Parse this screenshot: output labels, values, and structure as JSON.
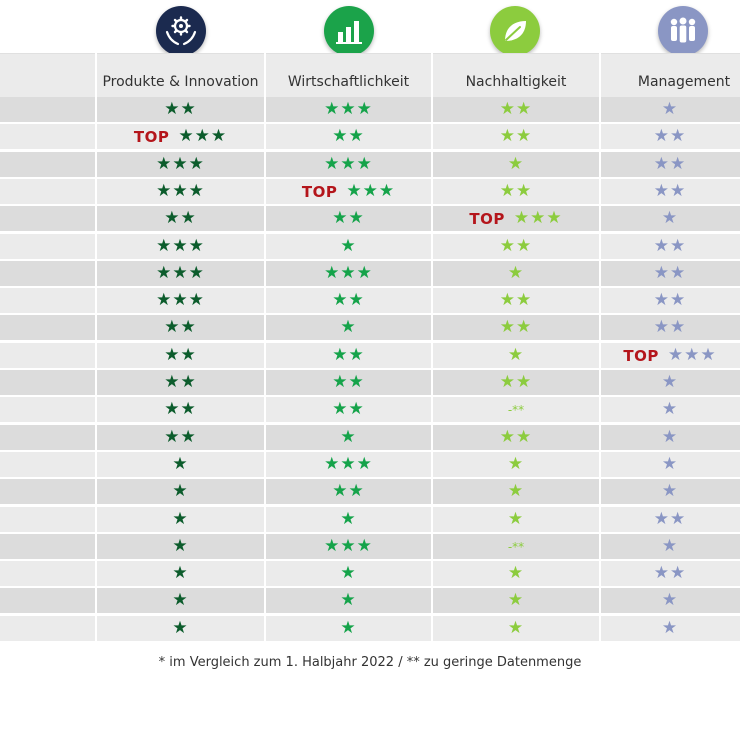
{
  "colors": {
    "produkte": "#0c5c2c",
    "wirtschaftlichkeit": "#15a34a",
    "nachhaltigkeit": "#8ccc3e",
    "management": "#8a96c4",
    "top": "#b4151b",
    "icon_produkte_bg": "#1b2a4f",
    "icon_wirtschaft_bg": "#1ba34a",
    "icon_nachhaltigkeit_bg": "#8ccc3e",
    "icon_management_bg": "#8a96c4"
  },
  "icons": [
    "hands-gear-icon",
    "bar-chart-icon",
    "leaf-icon",
    "people-icon"
  ],
  "columns": [
    "Produkte & Innovation",
    "Wirtschaftlichkeit",
    "Nachhaltigkeit",
    "Management"
  ],
  "top_label": "TOP",
  "rows": [
    [
      {
        "stars": 2,
        "top": false
      },
      {
        "stars": 3,
        "top": false
      },
      {
        "stars": 2,
        "top": false
      },
      {
        "stars": 1,
        "top": false
      }
    ],
    [
      {
        "stars": 3,
        "top": true
      },
      {
        "stars": 2,
        "top": false
      },
      {
        "stars": 2,
        "top": false
      },
      {
        "stars": 2,
        "top": false
      }
    ],
    [
      {
        "stars": 3,
        "top": false
      },
      {
        "stars": 3,
        "top": false
      },
      {
        "stars": 1,
        "top": false
      },
      {
        "stars": 2,
        "top": false
      }
    ],
    [
      {
        "stars": 3,
        "top": false
      },
      {
        "stars": 3,
        "top": true
      },
      {
        "stars": 2,
        "top": false
      },
      {
        "stars": 2,
        "top": false
      }
    ],
    [
      {
        "stars": 2,
        "top": false
      },
      {
        "stars": 2,
        "top": false
      },
      {
        "stars": 3,
        "top": true
      },
      {
        "stars": 1,
        "top": false
      }
    ],
    [
      {
        "stars": 3,
        "top": false
      },
      {
        "stars": 1,
        "top": false
      },
      {
        "stars": 2,
        "top": false
      },
      {
        "stars": 2,
        "top": false
      }
    ],
    [
      {
        "stars": 3,
        "top": false
      },
      {
        "stars": 3,
        "top": false
      },
      {
        "stars": 1,
        "top": false
      },
      {
        "stars": 2,
        "top": false
      }
    ],
    [
      {
        "stars": 3,
        "top": false
      },
      {
        "stars": 2,
        "top": false
      },
      {
        "stars": 2,
        "top": false
      },
      {
        "stars": 2,
        "top": false
      }
    ],
    [
      {
        "stars": 2,
        "top": false
      },
      {
        "stars": 1,
        "top": false
      },
      {
        "stars": 2,
        "top": false
      },
      {
        "stars": 2,
        "top": false
      }
    ],
    [
      {
        "stars": 2,
        "top": false
      },
      {
        "stars": 2,
        "top": false
      },
      {
        "stars": 1,
        "top": false
      },
      {
        "stars": 3,
        "top": true
      }
    ],
    [
      {
        "stars": 2,
        "top": false
      },
      {
        "stars": 2,
        "top": false
      },
      {
        "stars": 2,
        "top": false
      },
      {
        "stars": 1,
        "top": false
      }
    ],
    [
      {
        "stars": 2,
        "top": false
      },
      {
        "stars": 2,
        "top": false
      },
      {
        "text": "-**"
      },
      {
        "stars": 1,
        "top": false
      }
    ],
    [
      {
        "stars": 2,
        "top": false
      },
      {
        "stars": 1,
        "top": false
      },
      {
        "stars": 2,
        "top": false
      },
      {
        "stars": 1,
        "top": false
      }
    ],
    [
      {
        "stars": 1,
        "top": false
      },
      {
        "stars": 3,
        "top": false
      },
      {
        "stars": 1,
        "top": false
      },
      {
        "stars": 1,
        "top": false
      }
    ],
    [
      {
        "stars": 1,
        "top": false
      },
      {
        "stars": 2,
        "top": false
      },
      {
        "stars": 1,
        "top": false
      },
      {
        "stars": 1,
        "top": false
      }
    ],
    [
      {
        "stars": 1,
        "top": false
      },
      {
        "stars": 1,
        "top": false
      },
      {
        "stars": 1,
        "top": false
      },
      {
        "stars": 2,
        "top": false
      }
    ],
    [
      {
        "stars": 1,
        "top": false
      },
      {
        "stars": 3,
        "top": false
      },
      {
        "text": "-**"
      },
      {
        "stars": 1,
        "top": false
      }
    ],
    [
      {
        "stars": 1,
        "top": false
      },
      {
        "stars": 1,
        "top": false
      },
      {
        "stars": 1,
        "top": false
      },
      {
        "stars": 2,
        "top": false
      }
    ],
    [
      {
        "stars": 1,
        "top": false
      },
      {
        "stars": 1,
        "top": false
      },
      {
        "stars": 1,
        "top": false
      },
      {
        "stars": 1,
        "top": false
      }
    ],
    [
      {
        "stars": 1,
        "top": false
      },
      {
        "stars": 1,
        "top": false
      },
      {
        "stars": 1,
        "top": false
      },
      {
        "stars": 1,
        "top": false
      }
    ]
  ],
  "footnote": "* im Vergleich zum 1. Halbjahr 2022 / ** zu geringe Datenmenge"
}
